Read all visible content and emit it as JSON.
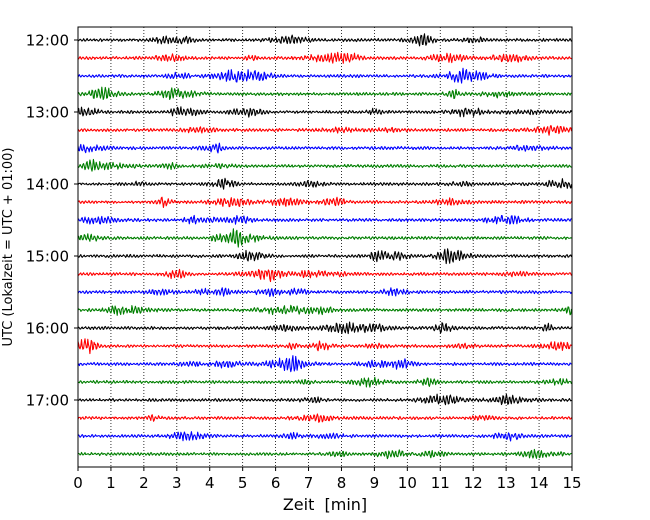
{
  "chart_data": {
    "type": "line",
    "subtype": "seismogram-helicorder",
    "xlabel": "Zeit  [min]",
    "ylabel": "UTC (Lokalzeit = UTC + 01:00)",
    "xlim": [
      0,
      15
    ],
    "x_ticks": [
      "0",
      "1",
      "2",
      "3",
      "4",
      "5",
      "6",
      "7",
      "8",
      "9",
      "10",
      "11",
      "12",
      "13",
      "14",
      "15"
    ],
    "y_ticks": [
      "12:00",
      "13:00",
      "14:00",
      "15:00",
      "16:00",
      "17:00"
    ],
    "grid": "vertical dotted lines at each minute",
    "trace_colors": [
      "#000000",
      "#ff0000",
      "#0000ff",
      "#007f00"
    ],
    "traces": [
      {
        "start": "12:00"
      },
      {
        "start": "12:15"
      },
      {
        "start": "12:30"
      },
      {
        "start": "12:45"
      },
      {
        "start": "13:00"
      },
      {
        "start": "13:15"
      },
      {
        "start": "13:30"
      },
      {
        "start": "13:45"
      },
      {
        "start": "14:00"
      },
      {
        "start": "14:15"
      },
      {
        "start": "14:30"
      },
      {
        "start": "14:45"
      },
      {
        "start": "15:00"
      },
      {
        "start": "15:15"
      },
      {
        "start": "15:30"
      },
      {
        "start": "15:45"
      },
      {
        "start": "16:00"
      },
      {
        "start": "16:15"
      },
      {
        "start": "16:30"
      },
      {
        "start": "16:45"
      },
      {
        "start": "17:00"
      },
      {
        "start": "17:15"
      },
      {
        "start": "17:30"
      },
      {
        "start": "17:45"
      }
    ]
  }
}
